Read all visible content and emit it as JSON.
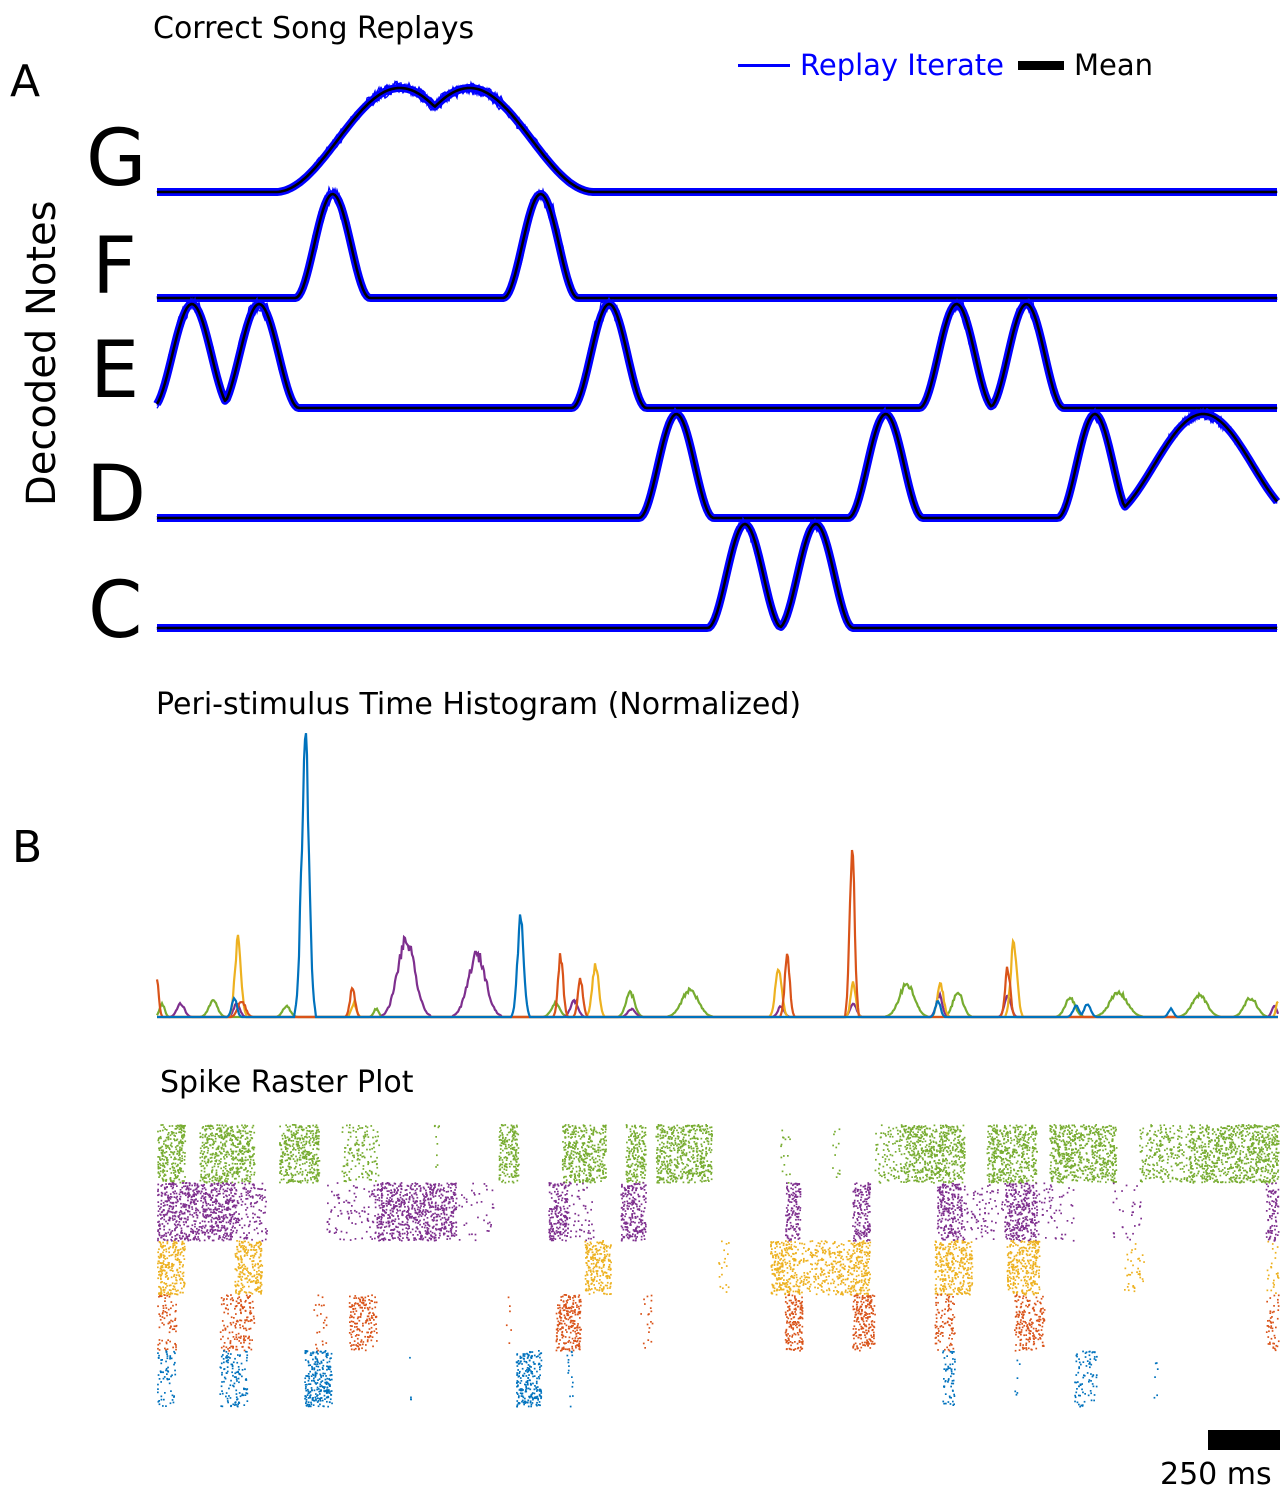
{
  "panel_a": {
    "letter": "A",
    "title": "Correct Song Replays",
    "ylabel": "Decoded Notes",
    "legend": {
      "iterate_label": "Replay Iterate",
      "mean_label": "Mean"
    },
    "notes": [
      "G",
      "F",
      "E",
      "D",
      "C"
    ]
  },
  "panel_b": {
    "letter": "B",
    "psth_title": "Peri-stimulus Time Histogram (Normalized)",
    "raster_title": "Spike Raster Plot"
  },
  "scale_bar": {
    "label": "250 ms"
  },
  "colors": {
    "iterate": "#0000ff",
    "mean": "#000000",
    "green": "#77ac30",
    "purple": "#7e2f8e",
    "yellow": "#edb120",
    "orange": "#d95319",
    "blue": "#0072bd"
  },
  "chart_data": [
    {
      "type": "line",
      "title": "Correct Song Replays",
      "ylabel": "Decoded Notes",
      "x_unit": "ms",
      "x_range": [
        0,
        4500
      ],
      "series": [
        {
          "name": "G",
          "peaks": [
            [
              975,
              1000,
              1
            ],
            [
              1255,
              1000,
              1
            ]
          ]
        },
        {
          "name": "F",
          "peaks": [
            [
              705,
              300,
              1
            ],
            [
              1540,
              300,
              1
            ]
          ]
        },
        {
          "name": "E",
          "peaks": [
            [
              140,
              320,
              1
            ],
            [
              410,
              320,
              1
            ],
            [
              1815,
              300,
              1
            ],
            [
              3210,
              300,
              1
            ],
            [
              3490,
              300,
              1
            ]
          ]
        },
        {
          "name": "D",
          "peaks": [
            [
              2085,
              300,
              1
            ],
            [
              2925,
              300,
              1
            ],
            [
              3765,
              300,
              1
            ],
            [
              4200,
              800,
              1
            ]
          ]
        },
        {
          "name": "C",
          "peaks": [
            [
              2360,
              300,
              1
            ],
            [
              2645,
              300,
              1
            ]
          ]
        }
      ]
    },
    {
      "type": "line",
      "title": "Peri-stimulus Time Histogram (Normalized)",
      "x_unit": "ms",
      "x_range": [
        0,
        4500
      ],
      "series": [
        {
          "color": "blue",
          "peaks": [
            [
              595,
              30,
              1.0
            ],
            [
              1460,
              25,
              0.36
            ],
            [
              310,
              20,
              0.07
            ],
            [
              3135,
              20,
              0.06
            ],
            [
              3735,
              25,
              0.05
            ],
            [
              3690,
              25,
              0.04
            ],
            [
              4070,
              20,
              0.03
            ]
          ]
        },
        {
          "color": "orange",
          "peaks": [
            [
              0,
              15,
              0.13
            ],
            [
              785,
              20,
              0.11
            ],
            [
              1620,
              20,
              0.23
            ],
            [
              2530,
              20,
              0.23
            ],
            [
              2790,
              20,
              0.63
            ],
            [
              3415,
              20,
              0.18
            ],
            [
              0,
              0,
              0
            ],
            [
              340,
              30,
              0.06
            ],
            [
              1700,
              20,
              0.14
            ]
          ]
        },
        {
          "color": "yellow",
          "peaks": [
            [
              325,
              25,
              0.28
            ],
            [
              1760,
              25,
              0.2
            ],
            [
              2495,
              25,
              0.19
            ],
            [
              2795,
              20,
              0.13
            ],
            [
              3145,
              25,
              0.12
            ],
            [
              3440,
              25,
              0.28
            ],
            [
              4500,
              15,
              0.06
            ],
            [
              790,
              20,
              0.05
            ]
          ]
        },
        {
          "color": "purple",
          "peaks": [
            [
              1000,
              70,
              0.28
            ],
            [
              1285,
              70,
              0.23
            ],
            [
              95,
              30,
              0.05
            ],
            [
              320,
              25,
              0.05
            ],
            [
              1675,
              30,
              0.06
            ],
            [
              1905,
              30,
              0.03
            ],
            [
              2505,
              25,
              0.04
            ],
            [
              2795,
              25,
              0.05
            ],
            [
              3140,
              25,
              0.08
            ],
            [
              3415,
              25,
              0.08
            ],
            [
              4485,
              20,
              0.04
            ]
          ]
        },
        {
          "color": "green",
          "peaks": [
            [
              20,
              20,
              0.05
            ],
            [
              225,
              35,
              0.06
            ],
            [
              520,
              30,
              0.04
            ],
            [
              1600,
              35,
              0.05
            ],
            [
              1900,
              35,
              0.09
            ],
            [
              2140,
              65,
              0.1
            ],
            [
              3010,
              60,
              0.12
            ],
            [
              3215,
              40,
              0.09
            ],
            [
              3665,
              40,
              0.07
            ],
            [
              3860,
              70,
              0.09
            ],
            [
              4185,
              60,
              0.08
            ],
            [
              4390,
              50,
              0.07
            ],
            [
              880,
              20,
              0.03
            ]
          ]
        }
      ]
    },
    {
      "type": "scatter",
      "title": "Spike Raster Plot",
      "x_unit": "ms",
      "x_range": [
        0,
        4500
      ],
      "rows": [
        {
          "color": "green",
          "bursts": [
            [
              0,
              110,
              1
            ],
            [
              170,
              390,
              1
            ],
            [
              490,
              650,
              1
            ],
            [
              740,
              890,
              0.4
            ],
            [
              1110,
              1130,
              0.15
            ],
            [
              1370,
              1450,
              1
            ],
            [
              1625,
              1800,
              1
            ],
            [
              1880,
              1960,
              1
            ],
            [
              2000,
              2225,
              1
            ],
            [
              2500,
              2540,
              0.15
            ],
            [
              2710,
              2740,
              0.15
            ],
            [
              2880,
              3000,
              0.4
            ],
            [
              3000,
              3240,
              1
            ],
            [
              3330,
              3530,
              1
            ],
            [
              3580,
              3850,
              1
            ],
            [
              3940,
              4140,
              0.5
            ],
            [
              4140,
              4500,
              1
            ]
          ]
        },
        {
          "color": "purple",
          "bursts": [
            [
              0,
              320,
              1
            ],
            [
              320,
              440,
              0.4
            ],
            [
              680,
              880,
              0.2
            ],
            [
              880,
              1200,
              1
            ],
            [
              1200,
              1350,
              0.1
            ],
            [
              1570,
              1650,
              1
            ],
            [
              1650,
              1750,
              0.2
            ],
            [
              1860,
              1960,
              1
            ],
            [
              2520,
              2580,
              1
            ],
            [
              2790,
              2860,
              1
            ],
            [
              3130,
              3230,
              1
            ],
            [
              3230,
              3400,
              0.2
            ],
            [
              3400,
              3530,
              1
            ],
            [
              3530,
              3680,
              0.15
            ],
            [
              3820,
              3950,
              0.1
            ],
            [
              4450,
              4500,
              0.7
            ]
          ]
        },
        {
          "color": "yellow",
          "bursts": [
            [
              0,
              110,
              1
            ],
            [
              310,
              420,
              1
            ],
            [
              1715,
              1820,
              1
            ],
            [
              2250,
              2300,
              0.15
            ],
            [
              2460,
              2580,
              1
            ],
            [
              2580,
              2780,
              0.6
            ],
            [
              2780,
              2860,
              1
            ],
            [
              3120,
              3270,
              1
            ],
            [
              3410,
              3540,
              1
            ],
            [
              3880,
              3960,
              0.2
            ],
            [
              4450,
              4500,
              0.2
            ]
          ]
        },
        {
          "color": "orange",
          "bursts": [
            [
              0,
              80,
              0.4
            ],
            [
              250,
              390,
              0.5
            ],
            [
              620,
              680,
              0.15
            ],
            [
              770,
              880,
              0.7
            ],
            [
              1400,
              1420,
              0.1
            ],
            [
              1600,
              1700,
              1
            ],
            [
              1940,
              1990,
              0.15
            ],
            [
              2520,
              2590,
              1
            ],
            [
              2790,
              2880,
              1
            ],
            [
              3120,
              3200,
              0.5
            ],
            [
              3440,
              3560,
              0.7
            ],
            [
              4450,
              4500,
              0.4
            ]
          ]
        },
        {
          "color": "blue",
          "bursts": [
            [
              0,
              70,
              0.4
            ],
            [
              250,
              360,
              0.5
            ],
            [
              590,
              700,
              1
            ],
            [
              1000,
              1020,
              0.05
            ],
            [
              1440,
              1540,
              1
            ],
            [
              1640,
              1670,
              0.2
            ],
            [
              3150,
              3200,
              0.5
            ],
            [
              3440,
              3460,
              0.1
            ],
            [
              3680,
              3770,
              0.4
            ],
            [
              4000,
              4020,
              0.1
            ]
          ]
        }
      ]
    }
  ]
}
